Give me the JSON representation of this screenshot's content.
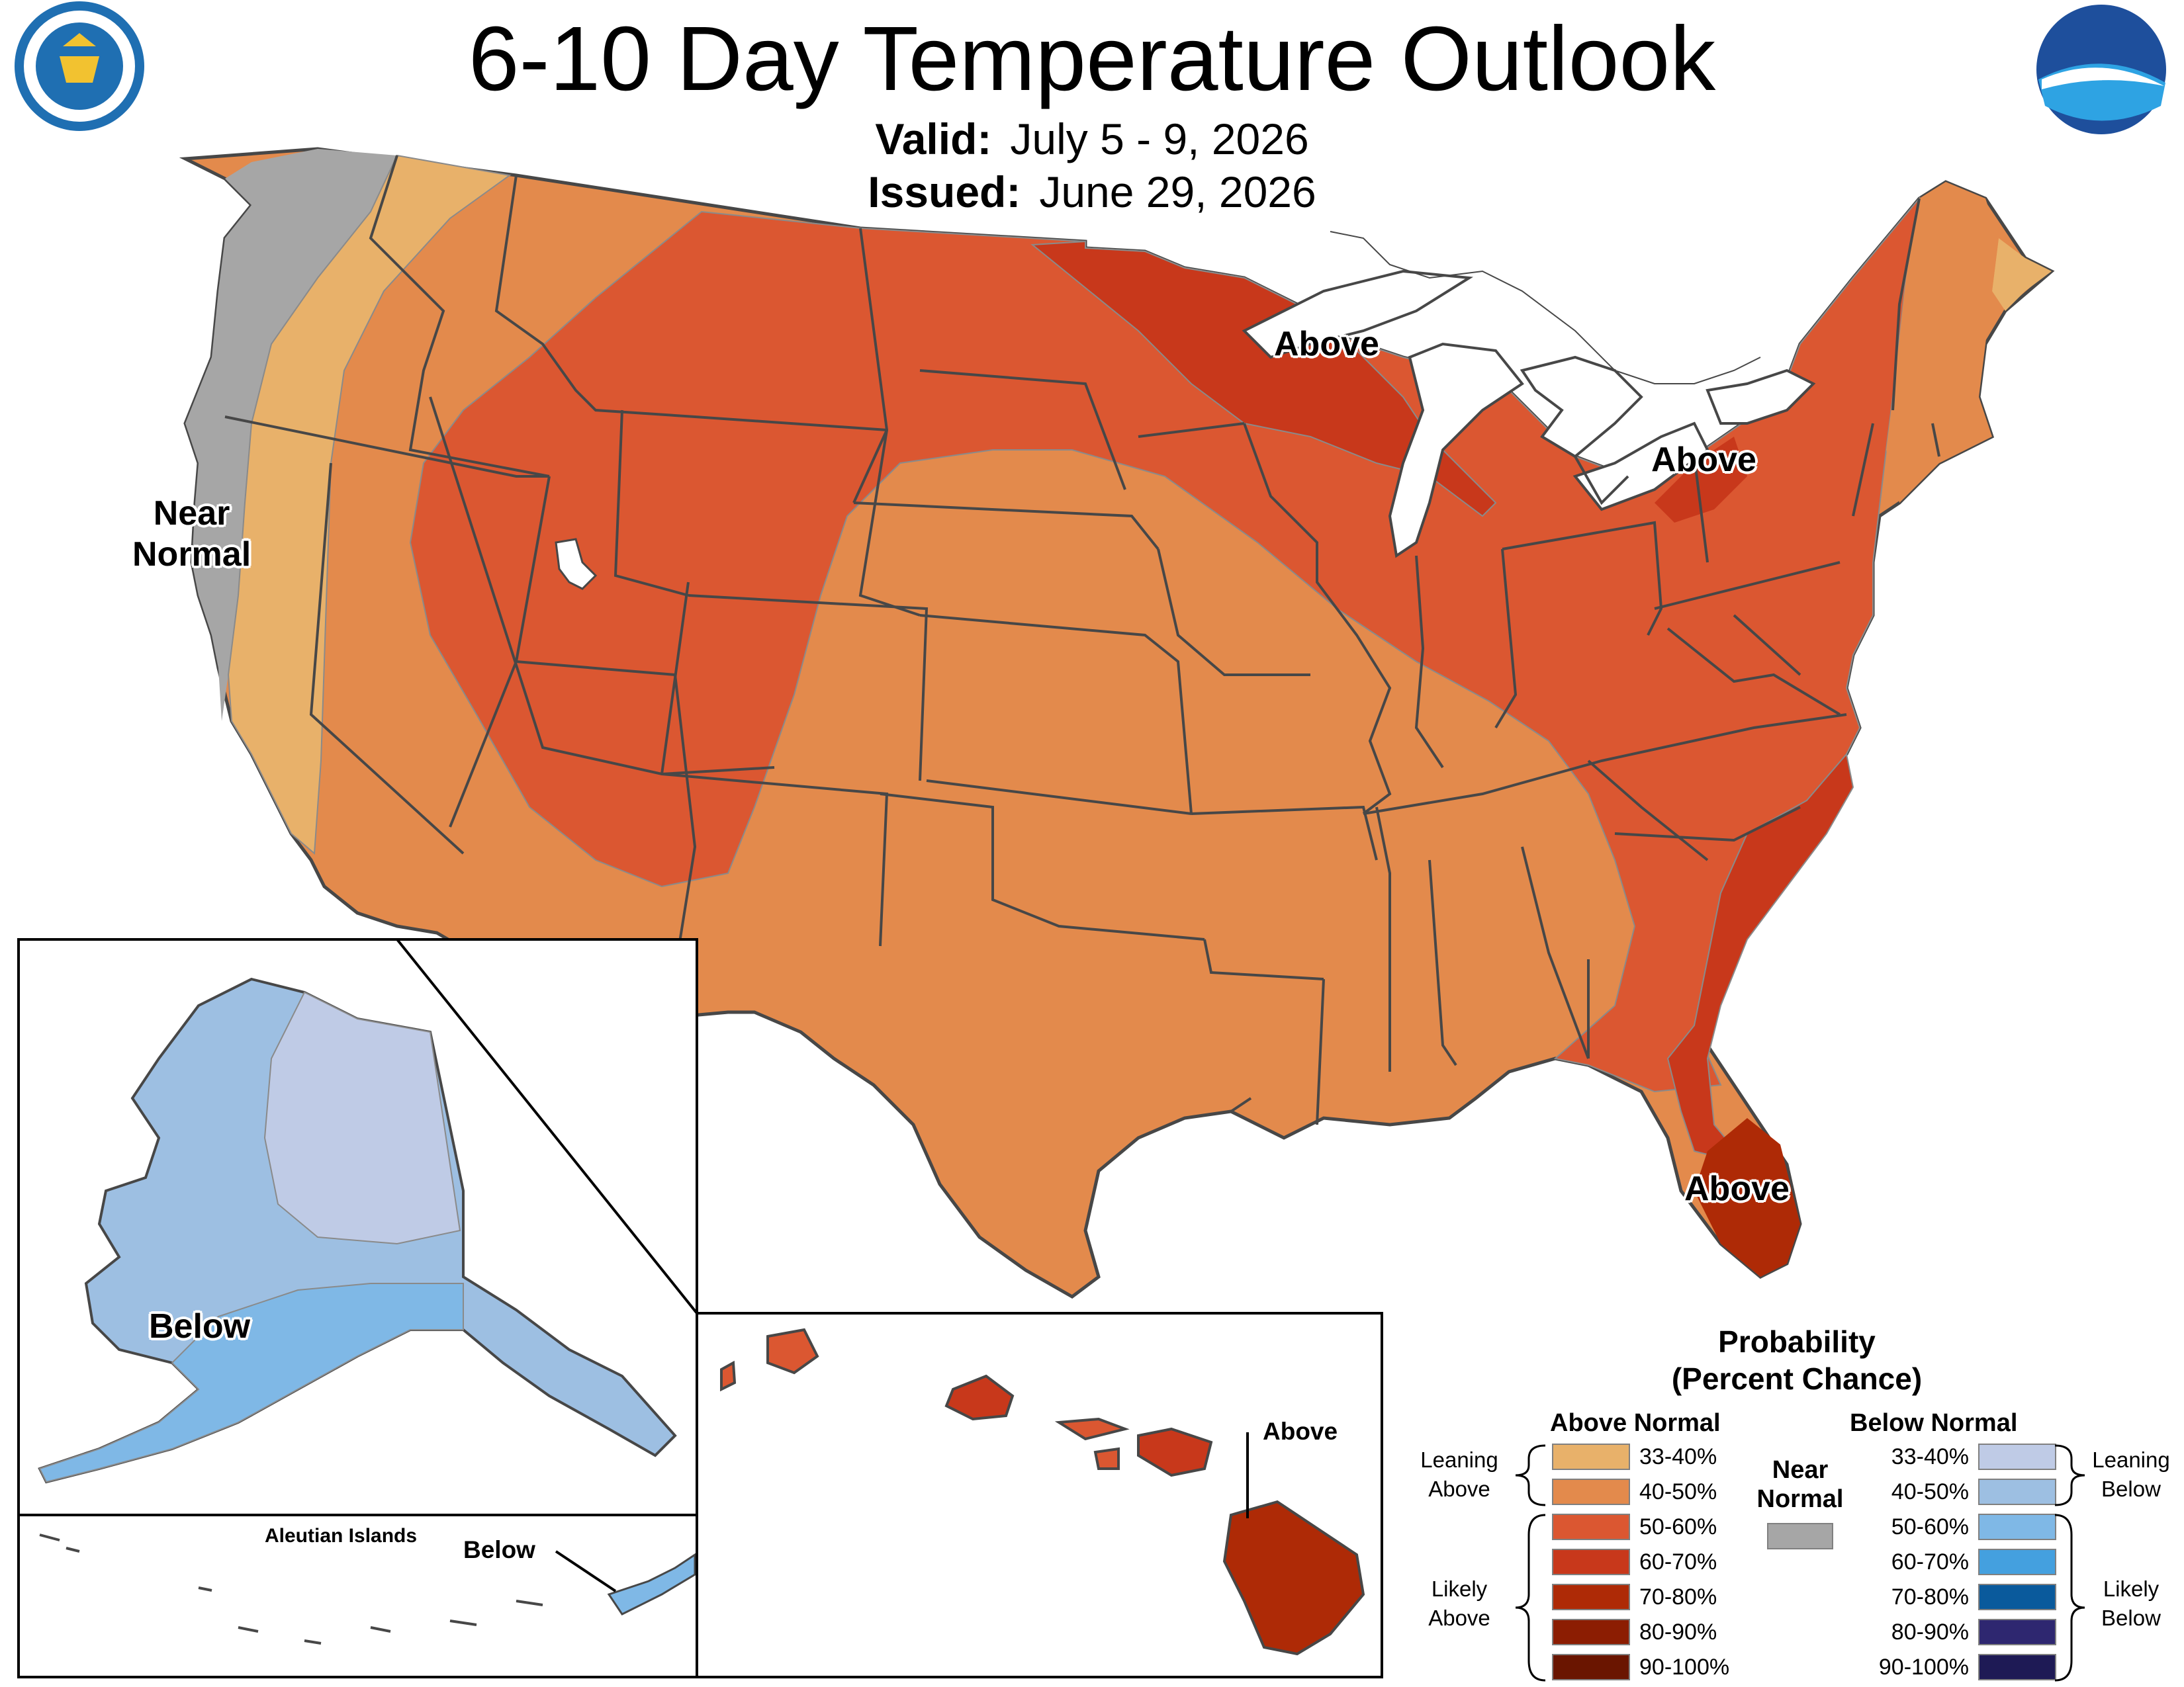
{
  "header": {
    "title": "6-10 Day Temperature Outlook",
    "valid_label": "Valid:",
    "valid_value": "July 5 - 9, 2026",
    "issued_label": "Issued:",
    "issued_value": "June 29, 2026"
  },
  "logos": {
    "commerce": "seal-department-of-commerce",
    "noaa": "NOAA"
  },
  "map_labels": {
    "west": "Near\nNormal",
    "great_lakes": "Above",
    "northeast": "Above",
    "florida": "Above",
    "alaska": "Below",
    "aleutians_title": "Aleutian Islands",
    "aleutians": "Below",
    "hawaii": "Above"
  },
  "colors": {
    "above_33_40": "#E8B16A",
    "above_40_50": "#E38A4C",
    "above_50_60": "#DB5731",
    "above_60_70": "#C8381B",
    "above_70_80": "#AE2A06",
    "above_80_90": "#8C1D02",
    "above_90_100": "#6A1500",
    "near_normal": "#A6A6A6",
    "below_33_40": "#BFCBE6",
    "below_40_50": "#9DBFE2",
    "below_50_60": "#7FB8E6",
    "below_60_70": "#44A0DF",
    "below_70_80": "#0A5A9C",
    "below_80_90": "#2E2770",
    "below_90_100": "#1E1A55",
    "borders": "#474747",
    "water": "#ffffff"
  },
  "legend": {
    "title_line1": "Probability",
    "title_line2": "(Percent Chance)",
    "above_header": "Above Normal",
    "below_header": "Below Normal",
    "near_header_line1": "Near",
    "near_header_line2": "Normal",
    "above_items": [
      "33-40%",
      "40-50%",
      "50-60%",
      "60-70%",
      "70-80%",
      "80-90%",
      "90-100%"
    ],
    "below_items": [
      "33-40%",
      "40-50%",
      "50-60%",
      "60-70%",
      "70-80%",
      "80-90%",
      "90-100%"
    ],
    "leaning_above": "Leaning\nAbove",
    "likely_above": "Likely\nAbove",
    "leaning_below": "Leaning\nBelow",
    "likely_below": "Likely\nBelow"
  }
}
